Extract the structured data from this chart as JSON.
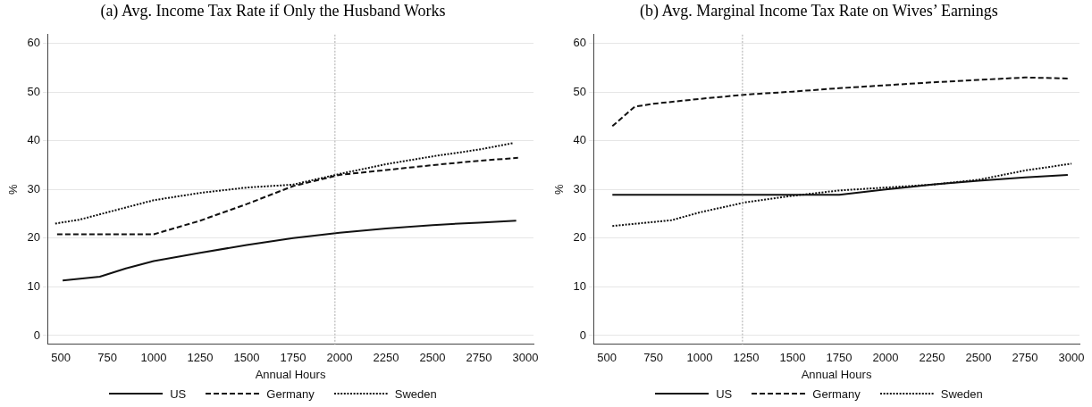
{
  "chart_data": [
    {
      "type": "line",
      "title": "(a) Avg. Income Tax Rate if Only the Husband Works",
      "xlabel": "Annual Hours",
      "ylabel": "%",
      "xlim": [
        428,
        3043
      ],
      "ylim": [
        -1.8,
        61.8
      ],
      "xticks": [
        500,
        750,
        1000,
        1250,
        1500,
        1750,
        2000,
        2250,
        2500,
        2750,
        3000
      ],
      "yticks": [
        0,
        10,
        20,
        30,
        40,
        50,
        60
      ],
      "grid": "y",
      "legend": "bottom",
      "marker": "none",
      "ref_lines": [
        {
          "axis": "x",
          "value": 1975,
          "color": "#aaaaaa",
          "line_style": "dotted"
        }
      ],
      "series": [
        {
          "name": "US",
          "color": "#111111",
          "line_style": "solid",
          "x": [
            510,
            710,
            850,
            1000,
            1250,
            1500,
            1750,
            2000,
            2250,
            2500,
            2750,
            2950
          ],
          "values": [
            11.3,
            12.1,
            13.8,
            15.3,
            17,
            18.6,
            20,
            21.1,
            22,
            22.7,
            23.2,
            23.6
          ]
        },
        {
          "name": "Germany",
          "color": "#111111",
          "line_style": "dashed",
          "x": [
            480,
            1000,
            1250,
            1500,
            1750,
            2000,
            2250,
            2500,
            2750,
            2960
          ],
          "values": [
            20.8,
            20.8,
            23.6,
            27,
            30.7,
            33,
            34,
            35,
            35.9,
            36.5
          ]
        },
        {
          "name": "Sweden",
          "color": "#111111",
          "line_style": "dotted",
          "x": [
            470,
            600,
            750,
            1000,
            1250,
            1500,
            1750,
            2000,
            2250,
            2500,
            2750,
            2930
          ],
          "values": [
            23,
            23.8,
            25.3,
            27.8,
            29.3,
            30.4,
            31,
            33.2,
            35.2,
            36.8,
            38.2,
            39.5
          ]
        }
      ]
    },
    {
      "type": "line",
      "title": "(b) Avg. Marginal Income Tax Rate on Wives’ Earnings",
      "xlabel": "Annual Hours",
      "ylabel": "%",
      "xlim": [
        428,
        3043
      ],
      "ylim": [
        -1.8,
        61.8
      ],
      "xticks": [
        500,
        750,
        1000,
        1250,
        1500,
        1750,
        2000,
        2250,
        2500,
        2750,
        3000
      ],
      "yticks": [
        0,
        10,
        20,
        30,
        40,
        50,
        60
      ],
      "grid": "y",
      "legend": "bottom",
      "marker": "none",
      "ref_lines": [
        {
          "axis": "x",
          "value": 1230,
          "color": "#aaaaaa",
          "line_style": "dotted"
        }
      ],
      "series": [
        {
          "name": "US",
          "color": "#111111",
          "line_style": "solid",
          "x": [
            530,
            1750,
            2000,
            2250,
            2500,
            2750,
            2980
          ],
          "values": [
            28.9,
            28.9,
            30,
            31,
            31.8,
            32.5,
            33
          ]
        },
        {
          "name": "Germany",
          "color": "#111111",
          "line_style": "dashed",
          "x": [
            530,
            650,
            750,
            1000,
            1250,
            1500,
            1750,
            2000,
            2250,
            2500,
            2750,
            2980
          ],
          "values": [
            43,
            47,
            47.6,
            48.6,
            49.5,
            50.1,
            50.8,
            51.4,
            52,
            52.5,
            53,
            52.8
          ]
        },
        {
          "name": "Sweden",
          "color": "#111111",
          "line_style": "dotted",
          "x": [
            530,
            850,
            1000,
            1250,
            1500,
            1750,
            2000,
            2250,
            2500,
            2750,
            3000
          ],
          "values": [
            22.5,
            23.7,
            25.3,
            27.4,
            28.7,
            29.8,
            30.4,
            31,
            32,
            33.9,
            35.3
          ]
        }
      ]
    }
  ]
}
